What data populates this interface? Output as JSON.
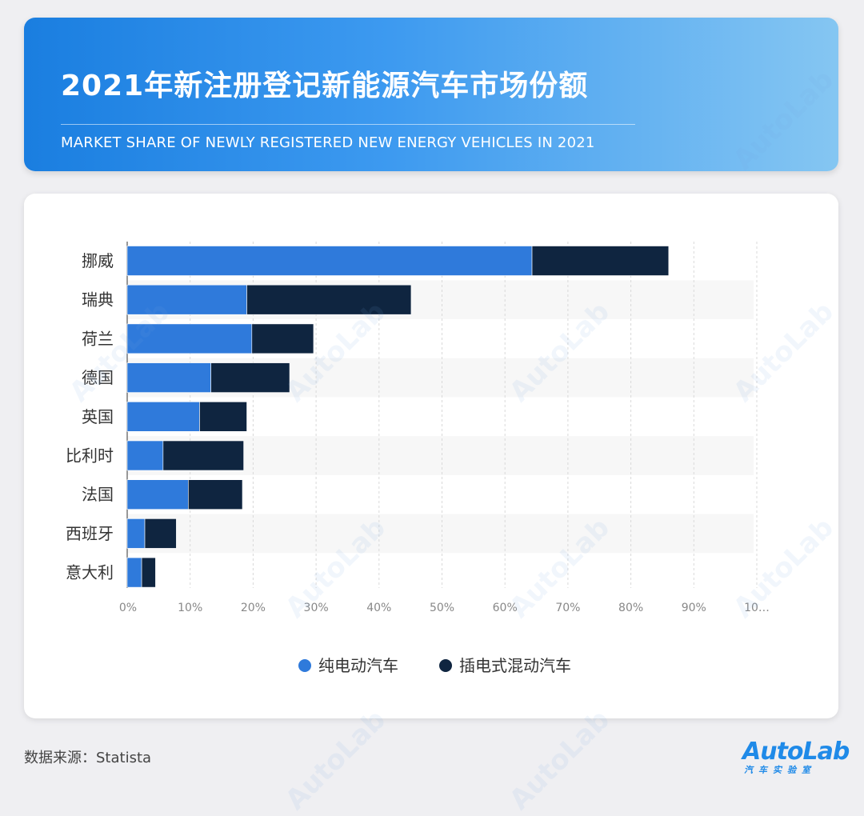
{
  "header": {
    "title": "2021年新注册登记新能源汽车市场份额",
    "subtitle": "MARKET SHARE OF NEWLY REGISTERED NEW ENERGY VEHICLES IN 2021"
  },
  "footer": {
    "source": "数据来源：Statista",
    "logo_text": "AutoLab",
    "logo_cn": "汽车实验室"
  },
  "watermark_text": "AutoLab",
  "colors": {
    "bev": "#2f7adb",
    "phev": "#0f2540",
    "grid": "#d9d9d9",
    "band": "#f7f7f7",
    "text": "#333333",
    "tick": "#888888"
  },
  "chart_data": {
    "type": "bar",
    "orientation": "horizontal",
    "stacked": true,
    "categories": [
      "挪威",
      "瑞典",
      "荷兰",
      "德国",
      "英国",
      "比利时",
      "法国",
      "西班牙",
      "意大利"
    ],
    "series": [
      {
        "name": "纯电动汽车",
        "values": [
          64.3,
          19.0,
          19.8,
          13.3,
          11.5,
          5.7,
          9.7,
          2.8,
          2.3
        ]
      },
      {
        "name": "插电式混动汽车",
        "values": [
          21.7,
          26.1,
          9.8,
          12.5,
          7.5,
          12.8,
          8.6,
          5.0,
          2.2
        ]
      }
    ],
    "x_ticks": [
      "0%",
      "10%",
      "20%",
      "30%",
      "40%",
      "50%",
      "60%",
      "70%",
      "80%",
      "90%",
      "10…"
    ],
    "xlim": [
      0,
      100
    ],
    "legend_position": "bottom-center",
    "grid": true
  }
}
